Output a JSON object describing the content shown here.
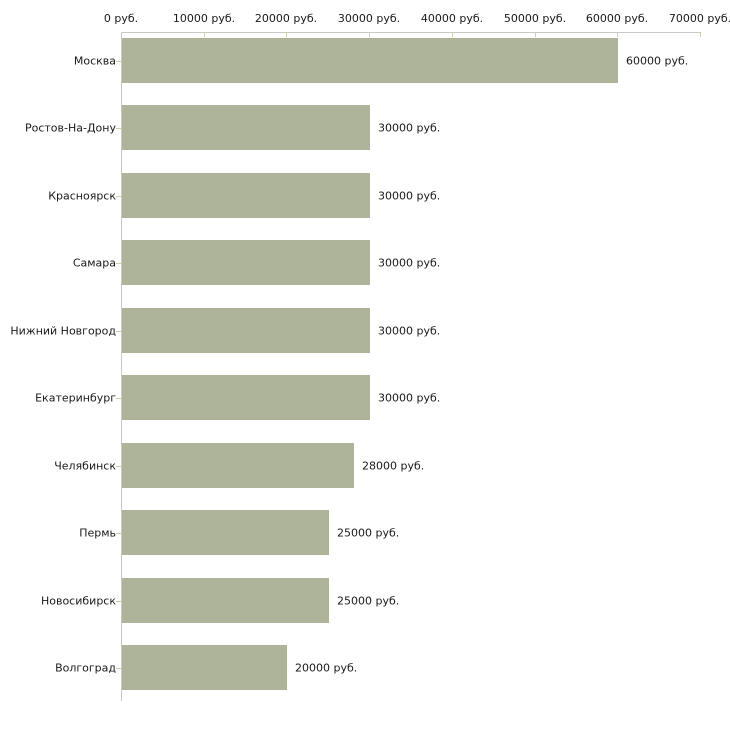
{
  "chart_data": {
    "type": "bar",
    "orientation": "horizontal",
    "title": "",
    "xlabel": "",
    "ylabel": "",
    "unit": "руб.",
    "categories": [
      "Москва",
      "Ростов-На-Дону",
      "Красноярск",
      "Самара",
      "Нижний Новгород",
      "Екатеринбург",
      "Челябинск",
      "Пермь",
      "Новосибирск",
      "Волгоград"
    ],
    "values": [
      60000,
      30000,
      30000,
      30000,
      30000,
      30000,
      28000,
      25000,
      25000,
      20000
    ],
    "value_labels": [
      "60000 руб.",
      "30000 руб.",
      "30000 руб.",
      "30000 руб.",
      "30000 руб.",
      "30000 руб.",
      "28000 руб.",
      "25000 руб.",
      "25000 руб.",
      "20000 руб."
    ],
    "x_tick_labels": [
      "0 руб.",
      "10000 руб.",
      "20000 руб.",
      "30000 руб.",
      "40000 руб.",
      "50000 руб.",
      "60000 руб.",
      "70000 руб."
    ],
    "x_tick_values": [
      0,
      10000,
      20000,
      30000,
      40000,
      50000,
      60000,
      70000
    ],
    "xlim": [
      0,
      70000
    ],
    "grid": false,
    "legend": false,
    "colors": {
      "bar_fill": "#adb499",
      "axis_line": "#c9c9c9",
      "tick_mark": "#cdcfae",
      "text": "#1a1a1a",
      "background": "#ffffff"
    }
  }
}
